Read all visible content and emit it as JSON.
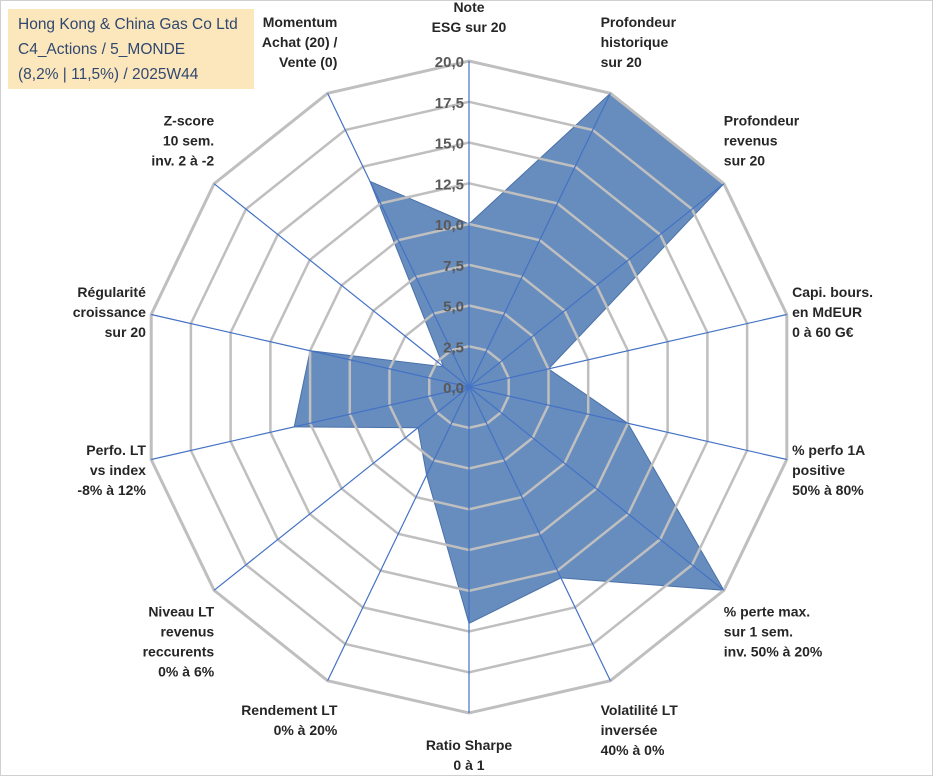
{
  "title_box": {
    "line1": "Hong Kong & China Gas Co Ltd",
    "line2": "C4_Actions / 5_MONDE",
    "line3": "(8,2% | 11,5%) / 2025W44"
  },
  "colors": {
    "grid": "#bfbfbf",
    "spoke": "#4472c4",
    "fill": "#5a82b8",
    "stroke": "#4a72a8",
    "title_bg": "#fbe5b6",
    "title_text": "#1f3864"
  },
  "chart_data": {
    "type": "radar",
    "title": "",
    "rmin": 0,
    "rmax": 20,
    "ticks": [
      "0,0",
      "2,5",
      "5,0",
      "7,5",
      "10,0",
      "12,5",
      "15,0",
      "17,5",
      "20,0"
    ],
    "categories": [
      [
        "Note",
        "ESG sur 20"
      ],
      [
        "Profondeur",
        "historique",
        "sur 20"
      ],
      [
        "Profondeur",
        "revenus",
        "sur 20"
      ],
      [
        "Capi. bours.",
        "en MdEUR",
        "0 à 60 G€"
      ],
      [
        "% perfo 1A",
        "positive",
        "50% à 80%"
      ],
      [
        "% perte max.",
        "sur 1 sem.",
        "inv. 50% à 20%"
      ],
      [
        "Volatilité LT",
        "inversée",
        "40% à 0%"
      ],
      [
        "Ratio Sharpe",
        "0 à 1"
      ],
      [
        "Rendement LT",
        "0% à 20%"
      ],
      [
        "Niveau LT",
        "revenus",
        "reccurents",
        "0% à 6%"
      ],
      [
        "Perfo. LT",
        "vs index",
        "-8% à 12%"
      ],
      [
        "Régularité",
        "croissance",
        "sur 20"
      ],
      [
        "Z-score",
        "10 sem.",
        "inv. 2 à -2"
      ],
      [
        "Momentum",
        "Achat (20) /",
        "Vente (0)"
      ]
    ],
    "series": [
      {
        "name": "Hong Kong & China Gas Co Ltd",
        "values": [
          10,
          20,
          20,
          5,
          10,
          20,
          13,
          14.5,
          6,
          4,
          11,
          10,
          2,
          14
        ]
      }
    ]
  }
}
